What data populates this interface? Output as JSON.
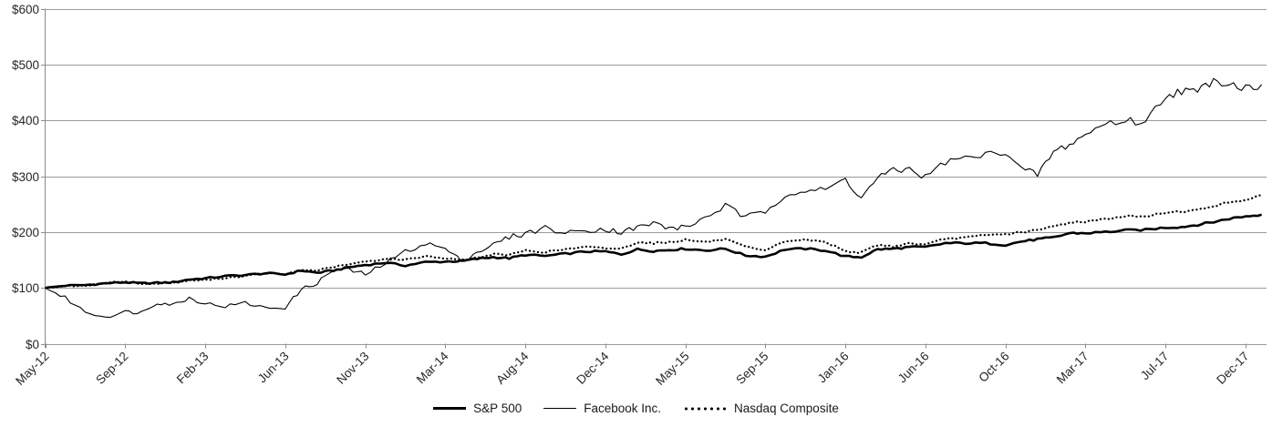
{
  "chart_data": {
    "type": "line",
    "title": "",
    "xlabel": "",
    "ylabel": "",
    "ylim": [
      0,
      600
    ],
    "y_step": 100,
    "y_tick_labels": [
      "$0",
      "$100",
      "$200",
      "$300",
      "$400",
      "$500",
      "$600"
    ],
    "x_tick_labels": [
      "May-12",
      "Sep-12",
      "Feb-13",
      "Jun-13",
      "Nov-13",
      "Mar-14",
      "Aug-14",
      "Dec-14",
      "May-15",
      "Sep-15",
      "Jan-16",
      "Jun-16",
      "Oct-16",
      "Mar-17",
      "Jul-17",
      "Dec-17"
    ],
    "x_tick_month_indices": [
      0,
      4,
      9,
      13,
      18,
      22,
      27,
      31,
      36,
      40,
      44,
      49,
      53,
      58,
      62,
      67
    ],
    "grid": "horizontal",
    "legend_position": "bottom-center",
    "baseline_value": 100,
    "series": [
      {
        "name": "S&P 500",
        "style": "thick-solid",
        "color": "#000000",
        "values": [
          100,
          104,
          105,
          108,
          110,
          108,
          109,
          110,
          115,
          117,
          121,
          123,
          126,
          124,
          131,
          127,
          131,
          137,
          141,
          145,
          140,
          146,
          147,
          148,
          152,
          155,
          153,
          159,
          157,
          161,
          165,
          165,
          160,
          169,
          166,
          168,
          170,
          167,
          170,
          158,
          156,
          169,
          170,
          167,
          156,
          155,
          169,
          170,
          173,
          173,
          180,
          180,
          180,
          177,
          183,
          187,
          190,
          198,
          198,
          200,
          203,
          204,
          208,
          209,
          213,
          218,
          224,
          228,
          231
        ]
      },
      {
        "name": "Facebook Inc.",
        "style": "thin-solid",
        "color": "#000000",
        "values": [
          100,
          82,
          57,
          48,
          57,
          56,
          74,
          70,
          82,
          72,
          67,
          73,
          64,
          65,
          97,
          109,
          132,
          132,
          124,
          144,
          165,
          180,
          170,
          148,
          164,
          177,
          191,
          197,
          208,
          197,
          204,
          205,
          200,
          208,
          216,
          207,
          208,
          226,
          247,
          226,
          237,
          268,
          274,
          275,
          295,
          260,
          298,
          309,
          313,
          298,
          326,
          332,
          338,
          345,
          312,
          303,
          343,
          357,
          374,
          395,
          399,
          397,
          445,
          453,
          450,
          474,
          466,
          458,
          464
        ]
      },
      {
        "name": "Nasdaq Composite",
        "style": "dotted",
        "color": "#000000",
        "values": [
          100,
          103,
          104,
          108,
          112,
          107,
          108,
          109,
          113,
          114,
          118,
          121,
          126,
          124,
          132,
          131,
          137,
          142,
          147,
          152,
          150,
          157,
          153,
          150,
          154,
          160,
          159,
          167,
          164,
          169,
          173,
          171,
          170,
          182,
          180,
          182,
          186,
          182,
          187,
          173,
          166,
          184,
          186,
          182,
          166,
          163,
          177,
          174,
          180,
          177,
          188,
          190,
          194,
          196,
          200,
          203,
          210,
          217,
          219,
          223,
          229,
          227,
          235,
          237,
          239,
          247,
          253,
          258,
          266
        ]
      }
    ]
  },
  "colors": {
    "background": "#ffffff",
    "gridline": "#9a9a9a",
    "axis": "#8c8c8c",
    "tick": "#8c8c8c",
    "label_text": "#262626",
    "series_line": "#000000"
  }
}
